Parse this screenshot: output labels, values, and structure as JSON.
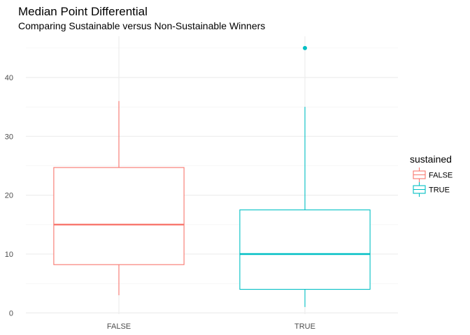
{
  "chart_data": {
    "type": "boxplot",
    "title": "Median Point Differential",
    "subtitle": "Comparing Sustainable versus Non-Sustainable Winners",
    "xlabel": "",
    "ylabel": "",
    "categories": [
      "FALSE",
      "TRUE"
    ],
    "ylim": [
      -0.2,
      47
    ],
    "y_ticks": [
      0,
      10,
      20,
      30,
      40
    ],
    "grid": true,
    "legend": {
      "title": "sustained",
      "position": "right",
      "entries": [
        "FALSE",
        "TRUE"
      ]
    },
    "colors": {
      "FALSE": "#F8766D",
      "TRUE": "#00BFC4"
    },
    "boxes": [
      {
        "category": "FALSE",
        "min": 3,
        "q1": 8.2,
        "median": 15,
        "q3": 24.7,
        "max": 36,
        "outliers": []
      },
      {
        "category": "TRUE",
        "min": 1,
        "q1": 4,
        "median": 10,
        "q3": 17.5,
        "max": 35,
        "outliers": [
          45
        ]
      }
    ]
  }
}
